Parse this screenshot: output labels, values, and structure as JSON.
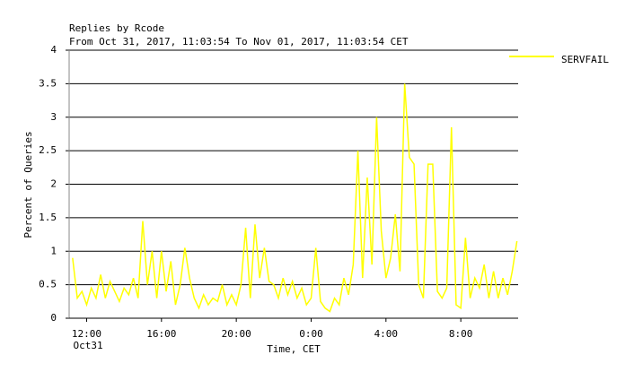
{
  "chart_data": {
    "type": "line",
    "title": "Replies by Rcode",
    "subtitle": "From Oct 31, 2017, 11:03:54 To Nov 01, 2017, 11:03:54 CET",
    "x_label": "Time, CET",
    "y_label": "Percent of Queries",
    "x_date_label": "Oct31",
    "xlim": [
      11.065,
      35.065
    ],
    "xticks": [
      {
        "value": 12,
        "label": "12:00"
      },
      {
        "value": 16,
        "label": "16:00"
      },
      {
        "value": 20,
        "label": "20:00"
      },
      {
        "value": 24,
        "label": "0:00"
      },
      {
        "value": 28,
        "label": "4:00"
      },
      {
        "value": 32,
        "label": "8:00"
      }
    ],
    "ylim": [
      0,
      4
    ],
    "yticks": [
      0,
      0.5,
      1,
      1.5,
      2,
      2.5,
      3,
      3.5,
      4
    ],
    "grid": true,
    "legend": "top-right",
    "x": [
      11.25,
      11.5,
      11.75,
      12,
      12.25,
      12.5,
      12.75,
      13,
      13.25,
      13.5,
      13.75,
      14,
      14.25,
      14.5,
      14.75,
      15,
      15.25,
      15.5,
      15.75,
      16,
      16.25,
      16.5,
      16.75,
      17,
      17.25,
      17.5,
      17.75,
      18,
      18.25,
      18.5,
      18.75,
      19,
      19.25,
      19.5,
      19.75,
      20,
      20.25,
      20.5,
      20.75,
      21,
      21.25,
      21.5,
      21.75,
      22,
      22.25,
      22.5,
      22.75,
      23,
      23.25,
      23.5,
      23.75,
      24,
      24.25,
      24.5,
      24.75,
      25,
      25.25,
      25.5,
      25.75,
      26,
      26.25,
      26.5,
      26.75,
      27,
      27.25,
      27.5,
      27.75,
      28,
      28.25,
      28.5,
      28.75,
      29,
      29.25,
      29.5,
      29.75,
      30,
      30.25,
      30.5,
      30.75,
      31,
      31.25,
      31.5,
      31.75,
      32,
      32.25,
      32.5,
      32.75,
      33,
      33.25,
      33.5,
      33.75,
      34,
      34.25,
      34.5,
      34.75,
      35
    ],
    "series": [
      {
        "name": "SERVFAIL",
        "color": "#ffff00",
        "values": [
          0.9,
          0.3,
          0.4,
          0.2,
          0.45,
          0.3,
          0.65,
          0.3,
          0.55,
          0.4,
          0.25,
          0.45,
          0.35,
          0.6,
          0.3,
          1.45,
          0.5,
          1.0,
          0.3,
          1.0,
          0.4,
          0.85,
          0.2,
          0.5,
          1.05,
          0.6,
          0.3,
          0.15,
          0.35,
          0.2,
          0.3,
          0.25,
          0.5,
          0.2,
          0.35,
          0.2,
          0.5,
          1.35,
          0.3,
          1.4,
          0.6,
          1.05,
          0.55,
          0.5,
          0.3,
          0.6,
          0.35,
          0.55,
          0.3,
          0.45,
          0.2,
          0.3,
          1.05,
          0.25,
          0.15,
          0.1,
          0.3,
          0.2,
          0.6,
          0.35,
          0.8,
          2.5,
          0.6,
          2.1,
          0.8,
          3.0,
          1.3,
          0.6,
          0.9,
          1.55,
          0.7,
          3.5,
          2.4,
          2.3,
          0.5,
          0.3,
          2.3,
          2.3,
          0.4,
          0.3,
          0.45,
          2.85,
          0.2,
          0.15,
          1.2,
          0.3,
          0.6,
          0.45,
          0.8,
          0.3,
          0.7,
          0.3,
          0.6,
          0.35,
          0.7,
          1.15
        ]
      }
    ]
  }
}
